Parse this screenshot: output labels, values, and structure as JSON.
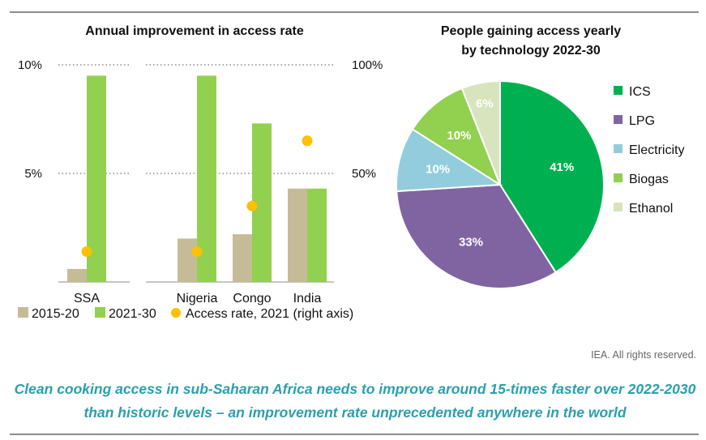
{
  "caption": "Clean cooking access in sub-Saharan Africa needs to improve around 15-times faster over 2022-2030 than historic levels – an improvement rate unprecedented anywhere in the world",
  "credit": "IEA. All rights reserved.",
  "chart_data": [
    {
      "type": "bar",
      "title": "Annual improvement in access rate",
      "categories": [
        "SSA",
        "Nigeria",
        "Congo",
        "India"
      ],
      "series": [
        {
          "name": "2015-20",
          "color": "#c5bc97",
          "values": [
            0.6,
            2.0,
            2.2,
            4.3
          ]
        },
        {
          "name": "2021-30",
          "color": "#92d050",
          "values": [
            9.5,
            9.5,
            7.3,
            4.3
          ]
        },
        {
          "name": "Access rate, 2021 (right axis)",
          "color": "#ffc000",
          "axis": "right",
          "marker": "dot",
          "values": [
            14,
            14,
            35,
            65
          ]
        }
      ],
      "y_left": {
        "min": 0,
        "max": 10,
        "ticks": [
          "5%",
          "10%"
        ],
        "tick_values": [
          5,
          10
        ]
      },
      "y_right": {
        "min": 0,
        "max": 100,
        "ticks": [
          "50%",
          "100%"
        ],
        "tick_values": [
          50,
          100
        ]
      },
      "grid": "dotted",
      "legend_position": "bottom"
    },
    {
      "type": "pie",
      "title": [
        "People gaining access yearly",
        "by technology 2022-30"
      ],
      "slices": [
        {
          "name": "ICS",
          "value": 41,
          "label": "41%",
          "color": "#00b050"
        },
        {
          "name": "LPG",
          "value": 33,
          "label": "33%",
          "color": "#8064a2"
        },
        {
          "name": "Electricity",
          "value": 10,
          "label": "10%",
          "color": "#93cddd"
        },
        {
          "name": "Biogas",
          "value": 10,
          "label": "10%",
          "color": "#92d050"
        },
        {
          "name": "Ethanol",
          "value": 6,
          "label": "6%",
          "color": "#d7e4bd"
        }
      ],
      "legend_position": "right"
    }
  ]
}
